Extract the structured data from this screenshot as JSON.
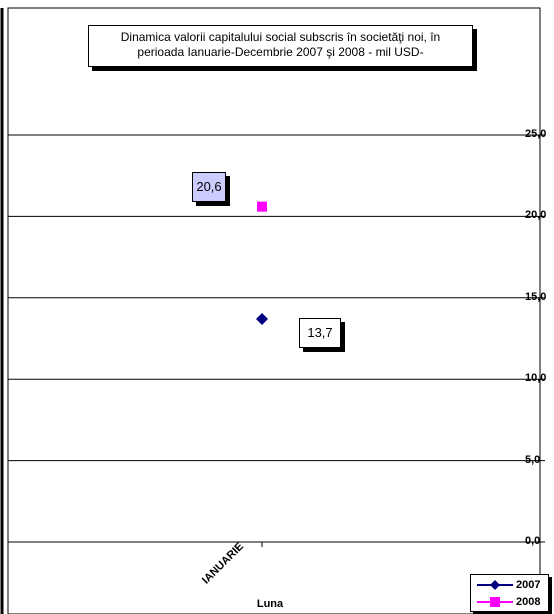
{
  "chart_data": {
    "type": "scatter",
    "title_lines": [
      "Dinamica  valorii capitalului social subscris în societăţi noi,  în",
      "perioada Ianuarie-Decembrie 2007 şi 2008  - mil  USD-"
    ],
    "xlabel": "Luna",
    "categories": [
      "IANUARIE"
    ],
    "ylim": [
      0,
      25
    ],
    "y_ticks": [
      "0,0",
      "5,0",
      "10,0",
      "15,0",
      "20,0",
      "25,0"
    ],
    "y_tick_values": [
      0,
      5,
      10,
      15,
      20,
      25
    ],
    "grid": true,
    "legend_position": "bottom-right",
    "series": [
      {
        "name": "2007",
        "values": [
          13.7
        ],
        "label": "13,7",
        "color": "#000080",
        "marker": "diamond",
        "label_bg": "#ffffff"
      },
      {
        "name": "2008",
        "values": [
          20.6
        ],
        "label": "20,6",
        "color": "#ff00ff",
        "marker": "square",
        "label_bg": "#ccccff"
      }
    ]
  }
}
